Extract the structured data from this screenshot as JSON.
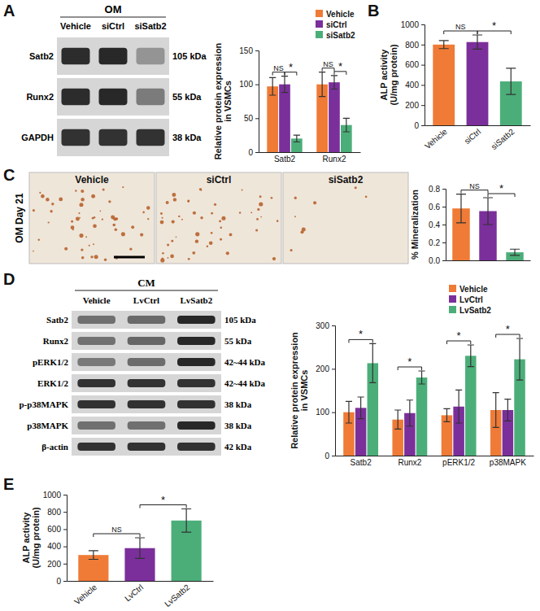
{
  "panel_labels": [
    "A",
    "B",
    "C",
    "D",
    "E"
  ],
  "blots": [
    {
      "header": "OM",
      "lanes": [
        "Vehicle",
        "siCtrl",
        "siSatb2"
      ],
      "rows": [
        {
          "label": "Satb2",
          "size": "105 kDa"
        },
        {
          "label": "Runx2",
          "size": "55 kDa"
        },
        {
          "label": "GAPDH",
          "size": "38 kDa"
        }
      ]
    },
    {
      "header": "CM",
      "lanes": [
        "Vehicle",
        "LvCtrl",
        "LvSatb2"
      ],
      "rows": [
        {
          "label": "Satb2",
          "size": "105 kDa"
        },
        {
          "label": "Runx2",
          "size": "55 kDa"
        },
        {
          "label": "pERK1/2",
          "size": "42~44 kDa"
        },
        {
          "label": "ERK1/2",
          "size": "42~44 kDa"
        },
        {
          "label": "p-p38MAPK",
          "size": "38 kDa"
        },
        {
          "label": "p38MAPK",
          "size": "38 kDa"
        },
        {
          "label": "β-actin",
          "size": "42 kDa"
        }
      ]
    }
  ],
  "images": {
    "side_label": "OM Day 21",
    "titles": [
      "Vehicle",
      "siCtrl",
      "siSatb2"
    ]
  },
  "chart_data": [
    {
      "type": "bar",
      "y_label": [
        "Relative protein expression",
        "in VSMCs"
      ],
      "categories": [
        "Satb2",
        "Runx2"
      ],
      "series": [
        {
          "name": "Vehicle",
          "color": "#ef7b36",
          "values": [
            97,
            100
          ],
          "errors": [
            13,
            18
          ]
        },
        {
          "name": "siCtrl",
          "color": "#7b2f9b",
          "values": [
            100,
            103
          ],
          "errors": [
            12,
            10
          ]
        },
        {
          "name": "siSatb2",
          "color": "#4bae79",
          "values": [
            20,
            40
          ],
          "errors": [
            5,
            10
          ]
        }
      ],
      "ylim": [
        0,
        150
      ],
      "yticks": [
        0,
        50,
        100,
        150
      ],
      "legend": "top",
      "annotations": [
        {
          "text": "NS",
          "category": 0,
          "between": [
            0,
            1
          ]
        },
        {
          "text": "*",
          "category": 0,
          "between": [
            1,
            2
          ]
        },
        {
          "text": "NS",
          "category": 1,
          "between": [
            0,
            1
          ]
        },
        {
          "text": "*",
          "category": 1,
          "between": [
            1,
            2
          ]
        }
      ]
    },
    {
      "type": "bar",
      "y_label": [
        "ALP activity",
        "(U/mg protein)"
      ],
      "categories": [
        "Vehicle",
        "siCtrl",
        "siSatb2"
      ],
      "values": [
        800,
        825,
        435
      ],
      "errors": [
        40,
        70,
        130
      ],
      "colors": [
        "#ef7b36",
        "#7b2f9b",
        "#4bae79"
      ],
      "ylim": [
        0,
        1000
      ],
      "yticks": [
        0,
        200,
        400,
        600,
        800,
        1000
      ],
      "annotations": [
        {
          "text": "NS",
          "between": [
            0,
            1
          ]
        },
        {
          "text": "*",
          "between": [
            1,
            2
          ]
        }
      ]
    },
    {
      "type": "bar",
      "y_label": "% Mineralization",
      "categories": [
        null,
        null,
        null
      ],
      "tick_labels": "y",
      "values": [
        0.58,
        0.55,
        0.09
      ],
      "errors": [
        0.16,
        0.15,
        0.035
      ],
      "colors": [
        "#ef7b36",
        "#7b2f9b",
        "#4bae79"
      ],
      "ylim": [
        0,
        0.8
      ],
      "yticks": [
        {
          "value": 0,
          "label": "0.0"
        },
        0.2,
        0.4,
        0.6,
        0.8
      ],
      "annotations": [
        {
          "text": "NS",
          "between": [
            0,
            1
          ]
        },
        {
          "text": "*",
          "between": [
            1,
            2
          ]
        }
      ]
    },
    {
      "type": "bar",
      "y_label": [
        "Relative protein expression",
        "in VSMCs"
      ],
      "categories": [
        "Satb2",
        "Runx2",
        "pERK1/2",
        "p38MAPK"
      ],
      "series": [
        {
          "name": "Vehicle",
          "color": "#ef7b36",
          "values": [
            100,
            83,
            93,
            105
          ],
          "errors": [
            25,
            22,
            15,
            40
          ]
        },
        {
          "name": "LvCtrl",
          "color": "#7b2f9b",
          "values": [
            110,
            98,
            113,
            105
          ],
          "errors": [
            25,
            30,
            38,
            25
          ]
        },
        {
          "name": "LvSatb2",
          "color": "#4bae79",
          "values": [
            213,
            180,
            230,
            222
          ],
          "errors": [
            45,
            15,
            25,
            48
          ]
        }
      ],
      "ylim": [
        0,
        300
      ],
      "yticks": [
        0,
        100,
        200,
        300
      ],
      "legend": "top",
      "annotations": [
        {
          "text": "*",
          "category": 0,
          "between": [
            0,
            2
          ]
        },
        {
          "text": "*",
          "category": 1,
          "between": [
            0,
            2
          ]
        },
        {
          "text": "*",
          "category": 2,
          "between": [
            0,
            2
          ]
        },
        {
          "text": "*",
          "category": 3,
          "between": [
            0,
            2
          ]
        }
      ]
    },
    {
      "type": "bar",
      "y_label": [
        "ALP activity",
        "(U/mg protein)"
      ],
      "categories": [
        "Vehicle",
        "LvCtrl",
        "LvSatb2"
      ],
      "values": [
        300,
        380,
        700
      ],
      "errors": [
        50,
        120,
        135
      ],
      "colors": [
        "#ef7b36",
        "#7b2f9b",
        "#4bae79"
      ],
      "ylim": [
        0,
        1000
      ],
      "yticks": [
        0,
        200,
        400,
        600,
        800,
        1000
      ],
      "annotations": [
        {
          "text": "NS",
          "between": [
            0,
            1
          ]
        },
        {
          "text": "*",
          "between": [
            1,
            2
          ]
        }
      ]
    }
  ]
}
